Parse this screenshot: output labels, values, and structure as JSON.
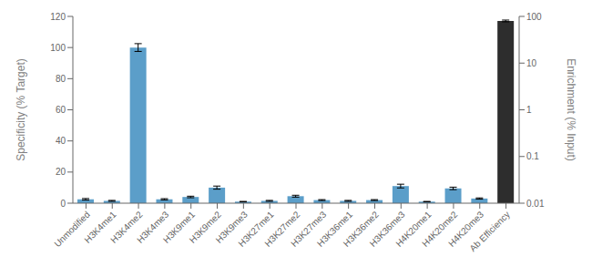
{
  "chart_data": {
    "type": "bar",
    "categories": [
      "Unmodified",
      "H3K4me1",
      "H3K4me2",
      "H3K4me3",
      "H3K9me1",
      "H3K9me2",
      "H3K9me3",
      "H3K27me1",
      "H3K27me2",
      "H3K27me3",
      "H3K36me1",
      "H3K36me2",
      "H3K36me3",
      "H4K20me1",
      "H4K20me2",
      "H4K20me3",
      "Ab Efficiency"
    ],
    "series": [
      {
        "color": "#5b9ec9",
        "axis": "y",
        "values": [
          2.5,
          1.5,
          100.0,
          2.5,
          4.0,
          10.0,
          1.0,
          1.5,
          4.5,
          2.0,
          1.5,
          2.0,
          11.0,
          1.0,
          9.5,
          3.0,
          null
        ],
        "errors": [
          0.5,
          0.3,
          2.5,
          0.4,
          0.5,
          1.0,
          0.15,
          0.3,
          0.6,
          0.3,
          0.3,
          0.3,
          1.2,
          0.15,
          0.8,
          0.4,
          null
        ]
      },
      {
        "color": "#2d2d2d",
        "axis": "y2",
        "values": [
          null,
          null,
          null,
          null,
          null,
          null,
          null,
          null,
          null,
          null,
          null,
          null,
          null,
          null,
          null,
          null,
          80.0
        ],
        "errors": [
          null,
          null,
          null,
          null,
          null,
          null,
          null,
          null,
          null,
          null,
          null,
          null,
          null,
          null,
          null,
          null,
          3.5
        ]
      }
    ],
    "ylabel": "Specificity (% Target)",
    "y2label": "Enrichment (% Input)",
    "ylim": [
      0,
      120
    ],
    "yticks": [
      0,
      20,
      40,
      60,
      80,
      100,
      120
    ],
    "y2lim": [
      0.01,
      100
    ],
    "y2ticks": [
      0.01,
      0.1,
      1,
      10,
      100
    ],
    "log": "y2",
    "grid": false
  }
}
